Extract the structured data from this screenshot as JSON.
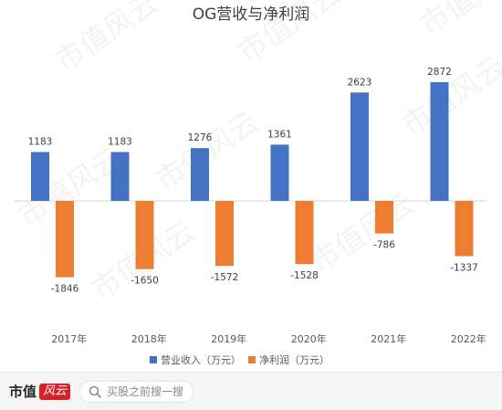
{
  "chart_data": {
    "type": "bar",
    "title": "OG营收与净利润",
    "categories": [
      "2017年",
      "2018年",
      "2019年",
      "2020年",
      "2021年",
      "2022年"
    ],
    "series": [
      {
        "name": "营业收入（万元）",
        "color": "#4472c4",
        "values": [
          1183,
          1183,
          1276,
          1361,
          2623,
          2872
        ],
        "labels": [
          "1183",
          "1183",
          "1276",
          "1361",
          "2623",
          "2872"
        ]
      },
      {
        "name": "净利润（万元）",
        "color": "#ed7d31",
        "values": [
          -1846,
          -1650,
          -1572,
          -1528,
          -786,
          -1337
        ],
        "labels": [
          "-1846",
          "-1650",
          "-1572",
          "-1528",
          "-786",
          "-1337"
        ]
      }
    ],
    "ylim": [
      -2500,
      3500
    ],
    "grid": false,
    "legend_position": "bottom"
  },
  "footer": {
    "brand": "市值",
    "logo_text": "风云",
    "search_placeholder": "买股之前搜一搜",
    "search_icon": "search-icon"
  },
  "watermark": "市值风云",
  "colors": {
    "revenue": "#4472c4",
    "net_profit": "#ed7d31",
    "axis": "#d9d9d9",
    "text": "#595959"
  }
}
